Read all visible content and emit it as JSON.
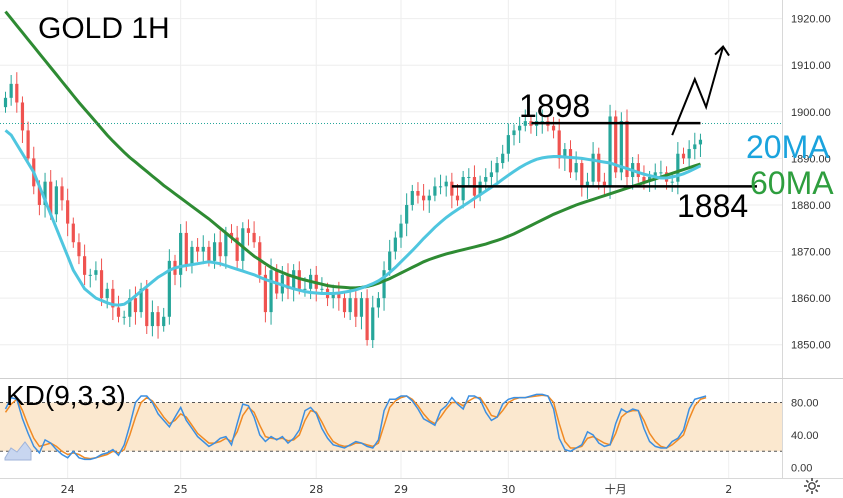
{
  "title": "GOLD 1H",
  "indicator_label": "KD(9,3,3)",
  "annotations": {
    "level_high": "1898",
    "level_low": "1884",
    "ma20_label": "20MA",
    "ma60_label": "60MA"
  },
  "colors": {
    "up": "#26a69a",
    "down": "#ef5350",
    "ma20": "#4fc6df",
    "ma60": "#2e8b33",
    "k_line": "#3d8fe0",
    "d_line": "#f08a24",
    "kd_band": "#fbe8cf",
    "price_dotted": "#26a69a"
  },
  "icons": {
    "left_corner": "chart-logo-icon",
    "bottom_right": "gear-icon"
  },
  "chart_data": {
    "type": "candlestick",
    "title": "GOLD 1H",
    "x_ticks": [
      {
        "label": "24",
        "bar": 11
      },
      {
        "label": "25",
        "bar": 31
      },
      {
        "label": "28",
        "bar": 55
      },
      {
        "label": "29",
        "bar": 70
      },
      {
        "label": "30",
        "bar": 89
      },
      {
        "label": "十月",
        "bar": 108
      },
      {
        "label": "2",
        "bar": 128
      }
    ],
    "y_ticks": [
      "1850.00",
      "1860.00",
      "1870.00",
      "1880.00",
      "1890.00",
      "1900.00",
      "1910.00",
      "1920.00"
    ],
    "ylim": [
      1843.5,
      1924.0
    ],
    "close": [
      1903,
      1906,
      1902,
      1896,
      1890,
      1884,
      1880,
      1885,
      1878,
      1884,
      1881,
      1876,
      1872,
      1869,
      1865,
      1865,
      1866,
      1860,
      1862,
      1858,
      1856,
      1856,
      1860,
      1857,
      1862,
      1854,
      1857,
      1854,
      1856,
      1868,
      1865,
      1874,
      1867,
      1871,
      1870,
      1871,
      1868,
      1872,
      1869,
      1874,
      1873,
      1868,
      1875,
      1874,
      1872,
      1865,
      1857,
      1866,
      1861,
      1865,
      1862,
      1866,
      1862,
      1862,
      1865,
      1862,
      1862,
      1860,
      1861,
      1860,
      1857,
      1860,
      1856,
      1860,
      1851,
      1858,
      1860,
      1866,
      1870,
      1873,
      1876,
      1880,
      1883,
      1882,
      1881,
      1882,
      1884,
      1884,
      1885,
      1882,
      1881,
      1886,
      1886,
      1882,
      1885,
      1886,
      1887,
      1889,
      1891,
      1895,
      1896,
      1897,
      1898,
      1897,
      1898,
      1898,
      1897,
      1896,
      1890,
      1892,
      1887,
      1889,
      1884,
      1885,
      1891,
      1885,
      1884,
      1899,
      1887,
      1898,
      1886,
      1889,
      1886,
      1885,
      1886,
      1887,
      1887,
      1885,
      1885,
      1891,
      1890,
      1892,
      1893,
      1894
    ],
    "ma20": [
      1896,
      1895,
      1893,
      1891,
      1889,
      1887,
      1884,
      1881,
      1878,
      1875,
      1872,
      1869,
      1866,
      1864,
      1862,
      1861,
      1860,
      1859.5,
      1859,
      1858.6,
      1858.5,
      1858.7,
      1859.5,
      1860.5,
      1861.5,
      1862.5,
      1863.5,
      1864.5,
      1865.2,
      1866,
      1866.5,
      1866.8,
      1867,
      1867.2,
      1867.4,
      1867.6,
      1867.8,
      1867.6,
      1867.4,
      1867,
      1866.6,
      1866.2,
      1865.8,
      1865.4,
      1865,
      1864.5,
      1864,
      1863.6,
      1863.2,
      1862.8,
      1862.4,
      1862,
      1861.7,
      1861.4,
      1861.2,
      1861.1,
      1861,
      1861,
      1861,
      1861.1,
      1861.3,
      1861.5,
      1861.8,
      1862.2,
      1862.6,
      1863.1,
      1863.7,
      1864.5,
      1865.5,
      1866.6,
      1867.8,
      1869,
      1870.2,
      1871.5,
      1872.8,
      1874,
      1875.2,
      1876.3,
      1877.3,
      1878.2,
      1879,
      1879.8,
      1880.6,
      1881.4,
      1882.2,
      1883,
      1883.8,
      1884.6,
      1885.5,
      1886.4,
      1887.2,
      1888,
      1888.7,
      1889.3,
      1889.8,
      1890.1,
      1890.3,
      1890.4,
      1890.4,
      1890.3,
      1890.2,
      1890.1,
      1890,
      1889.8,
      1889.6,
      1889.4,
      1889.2,
      1889,
      1888.6,
      1888.2,
      1887.8,
      1887.4,
      1887,
      1886.6,
      1886.3,
      1886,
      1885.8,
      1885.8,
      1886,
      1886.3,
      1886.7,
      1887.2,
      1887.8,
      1888.4
    ],
    "ma60": [
      1921.5,
      1920,
      1918.5,
      1917,
      1915.5,
      1914,
      1912.5,
      1911,
      1909.5,
      1908,
      1906.5,
      1905,
      1903.5,
      1902,
      1900.6,
      1899.2,
      1897.8,
      1896.4,
      1895,
      1893.7,
      1892.5,
      1891.3,
      1890.2,
      1889.2,
      1888.2,
      1887.2,
      1886.2,
      1885.2,
      1884.2,
      1883.3,
      1882.4,
      1881.5,
      1880.6,
      1879.7,
      1878.8,
      1877.9,
      1877,
      1876,
      1875,
      1874,
      1873,
      1872,
      1871,
      1870,
      1869,
      1868.2,
      1867.4,
      1866.6,
      1866,
      1865.5,
      1865,
      1864.6,
      1864.2,
      1863.9,
      1863.6,
      1863.3,
      1863,
      1862.7,
      1862.5,
      1862.4,
      1862.3,
      1862.2,
      1862.2,
      1862.3,
      1862.5,
      1862.8,
      1863.2,
      1863.7,
      1864.2,
      1864.8,
      1865.4,
      1866,
      1866.6,
      1867.2,
      1867.8,
      1868.3,
      1868.7,
      1869.1,
      1869.5,
      1869.8,
      1870.1,
      1870.4,
      1870.7,
      1871,
      1871.3,
      1871.6,
      1872,
      1872.4,
      1872.8,
      1873.3,
      1873.8,
      1874.4,
      1875,
      1875.6,
      1876.2,
      1876.8,
      1877.4,
      1878,
      1878.5,
      1879,
      1879.5,
      1880,
      1880.4,
      1880.8,
      1881.2,
      1881.6,
      1882,
      1882.4,
      1882.8,
      1883.2,
      1883.6,
      1884,
      1884.4,
      1884.8,
      1885.2,
      1885.6,
      1886,
      1886.4,
      1886.8,
      1887.2,
      1887.6,
      1888,
      1888.4,
      1888.8
    ],
    "k": [
      72,
      86,
      84,
      60,
      42,
      26,
      18,
      34,
      30,
      22,
      16,
      12,
      20,
      12,
      10,
      10,
      12,
      16,
      18,
      22,
      15,
      28,
      52,
      80,
      88,
      88,
      80,
      66,
      58,
      50,
      62,
      74,
      58,
      48,
      38,
      32,
      26,
      30,
      36,
      38,
      28,
      54,
      78,
      76,
      62,
      40,
      32,
      38,
      34,
      38,
      30,
      36,
      46,
      70,
      74,
      66,
      48,
      36,
      28,
      26,
      24,
      28,
      32,
      30,
      26,
      24,
      34,
      70,
      84,
      84,
      88,
      88,
      82,
      72,
      60,
      56,
      52,
      70,
      76,
      86,
      78,
      72,
      88,
      88,
      84,
      68,
      58,
      62,
      78,
      84,
      86,
      86,
      86,
      88,
      90,
      90,
      88,
      72,
      36,
      22,
      20,
      24,
      28,
      44,
      40,
      30,
      26,
      28,
      54,
      72,
      68,
      72,
      70,
      48,
      32,
      26,
      24,
      24,
      32,
      36,
      46,
      72,
      84,
      86,
      88
    ],
    "d": [
      68,
      78,
      84,
      70,
      52,
      36,
      26,
      28,
      30,
      26,
      20,
      16,
      18,
      16,
      12,
      11,
      12,
      14,
      16,
      20,
      18,
      22,
      40,
      62,
      80,
      86,
      82,
      72,
      62,
      54,
      58,
      66,
      62,
      52,
      42,
      36,
      30,
      30,
      32,
      36,
      32,
      44,
      64,
      74,
      68,
      52,
      38,
      36,
      35,
      36,
      33,
      34,
      40,
      58,
      70,
      68,
      56,
      42,
      32,
      28,
      26,
      27,
      30,
      30,
      28,
      26,
      30,
      52,
      74,
      82,
      86,
      88,
      84,
      76,
      66,
      58,
      54,
      62,
      72,
      80,
      80,
      76,
      82,
      86,
      86,
      76,
      64,
      62,
      70,
      80,
      84,
      86,
      86,
      87,
      88,
      89,
      88,
      80,
      54,
      32,
      24,
      24,
      26,
      36,
      38,
      34,
      30,
      28,
      42,
      62,
      68,
      70,
      70,
      58,
      42,
      32,
      26,
      24,
      28,
      34,
      40,
      60,
      76,
      84,
      86
    ],
    "kd_ylim": [
      0,
      100
    ],
    "kd_ticks": [
      "80.00",
      "40.00",
      "0.00"
    ],
    "kd_band": [
      20,
      80
    ],
    "reference_levels": [
      1898,
      1884
    ],
    "projection": [
      [
        118,
        1895
      ],
      [
        122,
        1907
      ],
      [
        124,
        1901
      ],
      [
        127,
        1914
      ]
    ],
    "projection_arrow_dir": "up"
  }
}
